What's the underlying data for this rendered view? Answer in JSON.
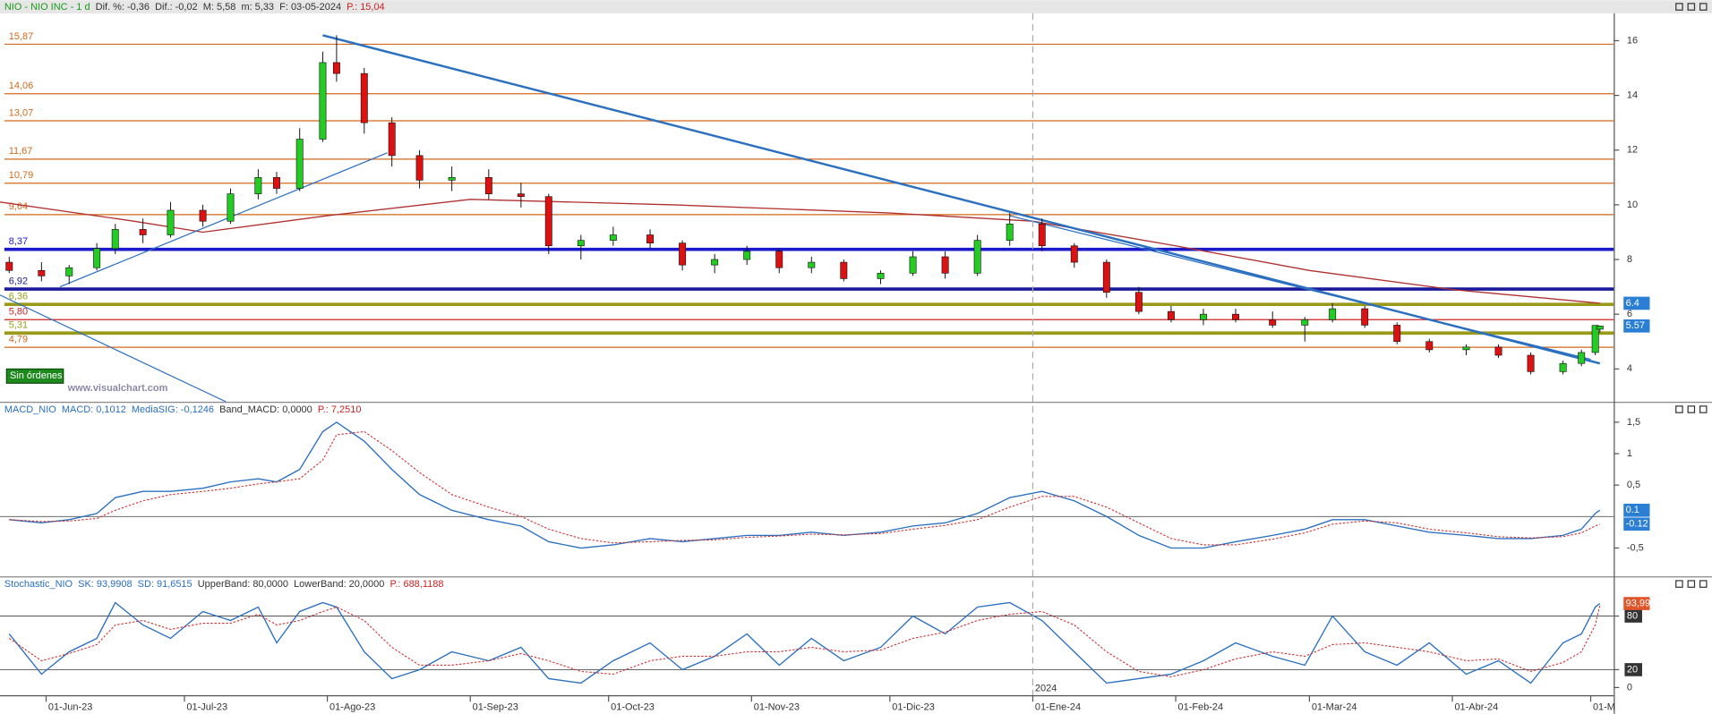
{
  "chart_data": [
    {
      "type": "candlestick",
      "header": [
        {
          "text": "NIO - NIO INC - 1 d",
          "color": "#1a9a1a"
        },
        {
          "text": "Dif. %: -0,36",
          "color": "#333333"
        },
        {
          "text": "Dif.: -0,02",
          "color": "#333333"
        },
        {
          "text": "M: 5,58",
          "color": "#333333"
        },
        {
          "text": "m: 5,33",
          "color": "#333333"
        },
        {
          "text": "F: 03-05-2024",
          "color": "#333333"
        },
        {
          "text": "P.: 15,04",
          "color": "#cc2222"
        }
      ],
      "x": [
        "2023-05-24",
        "2023-05-31",
        "2023-06-06",
        "2023-06-12",
        "2023-06-16",
        "2023-06-22",
        "2023-06-28",
        "2023-07-05",
        "2023-07-11",
        "2023-07-17",
        "2023-07-21",
        "2023-07-26",
        "2023-07-31",
        "2023-08-03",
        "2023-08-09",
        "2023-08-15",
        "2023-08-21",
        "2023-08-28",
        "2023-09-05",
        "2023-09-12",
        "2023-09-18",
        "2023-09-25",
        "2023-10-02",
        "2023-10-10",
        "2023-10-17",
        "2023-10-24",
        "2023-10-31",
        "2023-11-07",
        "2023-11-14",
        "2023-11-21",
        "2023-11-29",
        "2023-12-06",
        "2023-12-13",
        "2023-12-20",
        "2023-12-27",
        "2024-01-03",
        "2024-01-10",
        "2024-01-17",
        "2024-01-24",
        "2024-01-31",
        "2024-02-07",
        "2024-02-14",
        "2024-02-22",
        "2024-02-29",
        "2024-03-06",
        "2024-03-13",
        "2024-03-20",
        "2024-03-27",
        "2024-04-04",
        "2024-04-11",
        "2024-04-18",
        "2024-04-25",
        "2024-04-29",
        "2024-05-02",
        "2024-05-03"
      ],
      "open": [
        7.9,
        7.6,
        7.4,
        7.7,
        8.4,
        9.1,
        8.9,
        9.8,
        9.4,
        10.4,
        11.0,
        10.6,
        12.4,
        15.2,
        14.8,
        13.0,
        11.8,
        10.9,
        11.0,
        10.4,
        10.3,
        8.5,
        8.7,
        8.9,
        8.6,
        7.8,
        8.0,
        8.3,
        7.7,
        7.9,
        7.3,
        7.5,
        8.1,
        7.5,
        8.7,
        9.3,
        8.5,
        7.9,
        6.8,
        6.1,
        5.8,
        6.0,
        5.8,
        5.6,
        5.8,
        6.2,
        5.6,
        5.0,
        4.7,
        4.8,
        4.5,
        3.9,
        4.2,
        4.6,
        5.45
      ],
      "high": [
        8.1,
        7.9,
        7.8,
        8.6,
        9.3,
        9.5,
        10.1,
        10.0,
        10.6,
        11.3,
        11.2,
        12.8,
        15.6,
        16.2,
        15.0,
        13.2,
        12.0,
        11.4,
        11.3,
        10.8,
        10.4,
        8.9,
        9.2,
        9.1,
        8.7,
        8.2,
        8.5,
        8.4,
        8.1,
        8.0,
        7.6,
        8.3,
        8.3,
        8.9,
        9.7,
        9.5,
        8.6,
        8.0,
        7.0,
        6.3,
        6.2,
        6.2,
        6.1,
        5.9,
        6.4,
        6.3,
        5.7,
        5.1,
        4.9,
        4.9,
        4.6,
        4.3,
        4.7,
        5.6,
        5.58
      ],
      "low": [
        7.5,
        7.2,
        7.1,
        7.6,
        8.2,
        8.6,
        8.8,
        9.2,
        9.3,
        10.2,
        10.4,
        10.5,
        12.3,
        14.5,
        12.6,
        11.4,
        10.6,
        10.5,
        10.2,
        9.9,
        8.2,
        8.0,
        8.5,
        8.4,
        7.6,
        7.5,
        7.8,
        7.5,
        7.5,
        7.2,
        7.1,
        7.4,
        7.3,
        7.4,
        8.5,
        8.3,
        7.7,
        6.6,
        6.0,
        5.7,
        5.6,
        5.7,
        5.5,
        5.0,
        5.7,
        5.5,
        4.9,
        4.6,
        4.5,
        4.4,
        3.8,
        3.8,
        4.1,
        4.5,
        5.33
      ],
      "close": [
        7.6,
        7.4,
        7.7,
        8.4,
        9.1,
        8.9,
        9.8,
        9.4,
        10.4,
        11.0,
        10.6,
        12.4,
        15.2,
        14.8,
        13.0,
        11.8,
        10.9,
        11.0,
        10.4,
        10.3,
        8.5,
        8.7,
        8.9,
        8.6,
        7.8,
        8.0,
        8.3,
        7.7,
        7.9,
        7.3,
        7.5,
        8.1,
        7.5,
        8.7,
        9.3,
        8.5,
        7.9,
        6.8,
        6.1,
        5.8,
        6.0,
        5.8,
        5.6,
        5.8,
        6.2,
        5.6,
        5.0,
        4.7,
        4.8,
        4.5,
        3.9,
        4.2,
        4.6,
        5.59,
        5.57
      ],
      "up_color": "#22cc22",
      "down_color": "#dd1111",
      "xlim": [
        "2023-05-22",
        "2024-05-06"
      ],
      "ylim": [
        2.8,
        17
      ],
      "yticks": [
        4,
        6,
        8,
        10,
        12,
        14,
        16
      ],
      "levels": [
        {
          "value": 15.87,
          "label": "15,87",
          "color": "#d2691e",
          "width": 1
        },
        {
          "value": 14.06,
          "label": "14,06",
          "color": "#d2691e",
          "width": 1
        },
        {
          "value": 13.07,
          "label": "13,07",
          "color": "#d2691e",
          "width": 1
        },
        {
          "value": 11.67,
          "label": "11,67",
          "color": "#d2691e",
          "width": 1
        },
        {
          "value": 10.79,
          "label": "10,79",
          "color": "#d2691e",
          "width": 1
        },
        {
          "value": 9.64,
          "label": "9,64",
          "color": "#d2691e",
          "width": 1
        },
        {
          "value": 8.37,
          "label": "8,37",
          "color": "#1a1acc",
          "width": 3
        },
        {
          "value": 6.92,
          "label": "6,92",
          "color": "#1a1a9a",
          "width": 3
        },
        {
          "value": 6.36,
          "label": "6,36",
          "color": "#9a9a1a",
          "width": 3
        },
        {
          "value": 5.8,
          "label": "5,80",
          "color": "#cc2222",
          "width": 1
        },
        {
          "value": 5.31,
          "label": "5,31",
          "color": "#9a9a1a",
          "width": 3
        },
        {
          "value": 4.79,
          "label": "4,79",
          "color": "#d2691e",
          "width": 1
        }
      ],
      "series": [
        {
          "x": [
            "2023-05-22",
            "2023-06-20",
            "2023-07-05",
            "2023-08-01",
            "2023-09-01",
            "2023-10-15",
            "2023-12-01",
            "2024-01-01",
            "2024-02-01",
            "2024-03-01",
            "2024-04-01",
            "2024-05-03"
          ],
          "values": [
            10.1,
            9.4,
            9.0,
            9.6,
            10.2,
            10.0,
            9.7,
            9.4,
            8.5,
            7.6,
            6.9,
            6.4
          ],
          "color": "#b03030"
        }
      ],
      "trendlines": [
        {
          "x": [
            "2023-07-31",
            "2024-05-03"
          ],
          "values": [
            16.2,
            4.2
          ],
          "color": "#2a6fc0",
          "width": 2
        },
        {
          "x": [
            "2023-12-27",
            "2024-05-01"
          ],
          "values": [
            9.6,
            4.35
          ],
          "color": "#2a6fc0",
          "width": 1
        },
        {
          "x": [
            "2023-06-04",
            "2023-08-14"
          ],
          "values": [
            7.0,
            11.9
          ],
          "color": "#2a6fc0",
          "width": 1
        },
        {
          "x": [
            "2023-05-22",
            "2023-07-10"
          ],
          "values": [
            6.7,
            2.8
          ],
          "color": "#2a6fc0",
          "width": 1
        }
      ],
      "badges": [
        {
          "value": 6.4,
          "color": "#2a7fd4"
        },
        {
          "value": 5.57,
          "color": "#2a7fd4"
        }
      ],
      "orders_label": "Sin órdenes",
      "watermark": "www.visualchart.com"
    },
    {
      "type": "line",
      "header": [
        {
          "text": "MACD_NIO",
          "color": "#2a6fc0"
        },
        {
          "text": "MACD: 0,1012",
          "color": "#2a6fc0"
        },
        {
          "text": "MediaSIG: -0,1246",
          "color": "#2a6fc0"
        },
        {
          "text": "Band_MACD: 0,0000",
          "color": "#333333"
        },
        {
          "text": "P.: 7,2510",
          "color": "#cc2222"
        }
      ],
      "x": [
        "2023-05-24",
        "2023-05-31",
        "2023-06-06",
        "2023-06-12",
        "2023-06-16",
        "2023-06-22",
        "2023-06-28",
        "2023-07-05",
        "2023-07-11",
        "2023-07-17",
        "2023-07-21",
        "2023-07-26",
        "2023-07-31",
        "2023-08-03",
        "2023-08-09",
        "2023-08-15",
        "2023-08-21",
        "2023-08-28",
        "2023-09-05",
        "2023-09-12",
        "2023-09-18",
        "2023-09-25",
        "2023-10-02",
        "2023-10-10",
        "2023-10-17",
        "2023-10-24",
        "2023-10-31",
        "2023-11-07",
        "2023-11-14",
        "2023-11-21",
        "2023-11-29",
        "2023-12-06",
        "2023-12-13",
        "2023-12-20",
        "2023-12-27",
        "2024-01-03",
        "2024-01-10",
        "2024-01-17",
        "2024-01-24",
        "2024-01-31",
        "2024-02-07",
        "2024-02-14",
        "2024-02-22",
        "2024-02-29",
        "2024-03-06",
        "2024-03-13",
        "2024-03-20",
        "2024-03-27",
        "2024-04-04",
        "2024-04-11",
        "2024-04-18",
        "2024-04-25",
        "2024-04-29",
        "2024-05-02",
        "2024-05-03"
      ],
      "series": [
        {
          "color": "#2a6fc0",
          "values": [
            -0.05,
            -0.1,
            -0.05,
            0.05,
            0.3,
            0.4,
            0.4,
            0.45,
            0.55,
            0.6,
            0.55,
            0.75,
            1.35,
            1.5,
            1.2,
            0.75,
            0.35,
            0.1,
            -0.05,
            -0.15,
            -0.4,
            -0.5,
            -0.45,
            -0.35,
            -0.4,
            -0.35,
            -0.3,
            -0.3,
            -0.25,
            -0.3,
            -0.25,
            -0.15,
            -0.1,
            0.05,
            0.3,
            0.4,
            0.25,
            0.0,
            -0.3,
            -0.5,
            -0.5,
            -0.4,
            -0.3,
            -0.2,
            -0.05,
            -0.05,
            -0.15,
            -0.25,
            -0.3,
            -0.35,
            -0.35,
            -0.3,
            -0.2,
            0.05,
            0.1012
          ]
        },
        {
          "color": "#cc3333",
          "dashed": true,
          "values": [
            -0.05,
            -0.08,
            -0.07,
            -0.03,
            0.1,
            0.25,
            0.35,
            0.4,
            0.45,
            0.52,
            0.55,
            0.6,
            0.9,
            1.3,
            1.35,
            1.05,
            0.7,
            0.35,
            0.15,
            0.0,
            -0.2,
            -0.35,
            -0.42,
            -0.4,
            -0.38,
            -0.37,
            -0.33,
            -0.31,
            -0.28,
            -0.29,
            -0.27,
            -0.2,
            -0.14,
            -0.05,
            0.15,
            0.32,
            0.32,
            0.15,
            -0.1,
            -0.35,
            -0.45,
            -0.45,
            -0.36,
            -0.26,
            -0.12,
            -0.07,
            -0.1,
            -0.2,
            -0.26,
            -0.32,
            -0.34,
            -0.32,
            -0.26,
            -0.15,
            -0.1246
          ]
        }
      ],
      "xlim": [
        "2023-05-22",
        "2024-05-06"
      ],
      "ylim": [
        -0.95,
        1.6
      ],
      "yticks": [
        {
          "value": 1.5,
          "label": "1,5"
        },
        1,
        {
          "value": 0.5,
          "label": "0,5"
        },
        {
          "value": -0.5,
          "label": "-0,5"
        }
      ],
      "hlines": [
        0
      ],
      "badges": [
        {
          "value": 0.1,
          "color": "#2a7fd4"
        },
        {
          "value": -0.12,
          "color": "#2a7fd4"
        }
      ]
    },
    {
      "type": "line",
      "header": [
        {
          "text": "Stochastic_NIO",
          "color": "#2a6fc0"
        },
        {
          "text": "SK: 93,9908",
          "color": "#2a6fc0"
        },
        {
          "text": "SD: 91,6515",
          "color": "#2a6fc0"
        },
        {
          "text": "UpperBand: 80,0000",
          "color": "#333333"
        },
        {
          "text": "LowerBand: 20,0000",
          "color": "#333333"
        },
        {
          "text": "P.: 688,1188",
          "color": "#cc2222"
        }
      ],
      "x": [
        "2023-05-24",
        "2023-05-31",
        "2023-06-06",
        "2023-06-12",
        "2023-06-16",
        "2023-06-22",
        "2023-06-28",
        "2023-07-05",
        "2023-07-11",
        "2023-07-17",
        "2023-07-21",
        "2023-07-26",
        "2023-07-31",
        "2023-08-03",
        "2023-08-09",
        "2023-08-15",
        "2023-08-21",
        "2023-08-28",
        "2023-09-05",
        "2023-09-12",
        "2023-09-18",
        "2023-09-25",
        "2023-10-02",
        "2023-10-10",
        "2023-10-17",
        "2023-10-24",
        "2023-10-31",
        "2023-11-07",
        "2023-11-14",
        "2023-11-21",
        "2023-11-29",
        "2023-12-06",
        "2023-12-13",
        "2023-12-20",
        "2023-12-27",
        "2024-01-03",
        "2024-01-10",
        "2024-01-17",
        "2024-01-24",
        "2024-01-31",
        "2024-02-07",
        "2024-02-14",
        "2024-02-22",
        "2024-02-29",
        "2024-03-06",
        "2024-03-13",
        "2024-03-20",
        "2024-03-27",
        "2024-04-04",
        "2024-04-11",
        "2024-04-18",
        "2024-04-25",
        "2024-04-29",
        "2024-05-02",
        "2024-05-03"
      ],
      "series": [
        {
          "color": "#2a6fc0",
          "values": [
            60,
            15,
            40,
            55,
            95,
            70,
            55,
            85,
            75,
            90,
            50,
            85,
            95,
            90,
            40,
            10,
            20,
            40,
            30,
            45,
            10,
            5,
            30,
            50,
            20,
            35,
            60,
            25,
            55,
            30,
            45,
            80,
            60,
            90,
            95,
            75,
            40,
            5,
            10,
            15,
            30,
            50,
            35,
            25,
            80,
            40,
            25,
            50,
            15,
            30,
            5,
            50,
            60,
            90,
            93.9908
          ]
        },
        {
          "color": "#cc3333",
          "dashed": true,
          "values": [
            55,
            30,
            38,
            48,
            70,
            75,
            65,
            72,
            72,
            82,
            70,
            75,
            85,
            90,
            75,
            45,
            25,
            25,
            30,
            38,
            30,
            18,
            15,
            30,
            35,
            35,
            40,
            40,
            45,
            40,
            42,
            55,
            62,
            75,
            82,
            85,
            70,
            40,
            18,
            12,
            20,
            32,
            40,
            35,
            48,
            50,
            45,
            40,
            30,
            32,
            18,
            28,
            40,
            70,
            91.6515
          ]
        }
      ],
      "xlim": [
        "2023-05-22",
        "2024-05-06"
      ],
      "ylim": [
        -8.6,
        108.6
      ],
      "yticks": [
        80,
        20,
        0
      ],
      "hlines": [
        80,
        20
      ],
      "badges": [
        {
          "value": 93.99,
          "label": "93,99",
          "color": "#e0552a"
        }
      ],
      "xticks": [
        {
          "value": "2023-06-01",
          "label": "01-Jun-23"
        },
        {
          "value": "2023-07-01",
          "label": "01-Jul-23"
        },
        {
          "value": "2023-08-01",
          "label": "01-Ago-23"
        },
        {
          "value": "2023-09-01",
          "label": "01-Sep-23"
        },
        {
          "value": "2023-10-01",
          "label": "01-Oct-23"
        },
        {
          "value": "2023-11-01",
          "label": "01-Nov-23"
        },
        {
          "value": "2023-12-01",
          "label": "01-Dic-23"
        },
        {
          "value": "2024-01-01",
          "label": "01-Ene-24"
        },
        {
          "value": "2024-02-01",
          "label": "01-Feb-24"
        },
        {
          "value": "2024-03-01",
          "label": "01-Mar-24"
        },
        {
          "value": "2024-04-01",
          "label": "01-Abr-24"
        },
        {
          "value": "2024-05-01",
          "label": "01-M"
        }
      ],
      "year_marker": {
        "value": "2024-01-01",
        "label": "2024"
      }
    }
  ]
}
